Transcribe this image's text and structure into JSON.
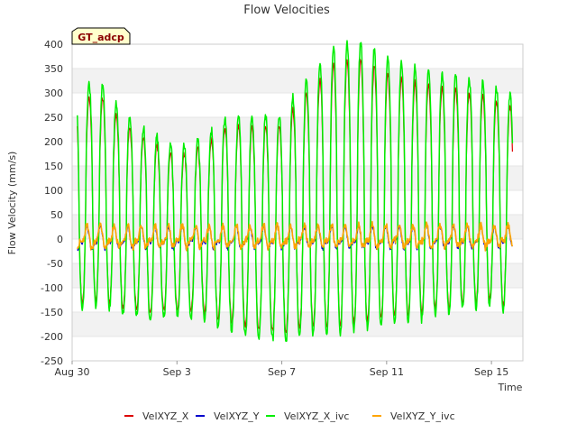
{
  "chart_data": {
    "type": "line",
    "title": "Flow Velocities",
    "xlabel": "Time",
    "ylabel": "Flow Velocity (mm/s)",
    "badge": "GT_adcp",
    "ylim": [
      -250,
      400
    ],
    "yticks": [
      -250,
      -200,
      -150,
      -100,
      -50,
      0,
      50,
      100,
      150,
      200,
      250,
      300,
      350,
      400
    ],
    "xlim_days": [
      0,
      17.2
    ],
    "xticks": [
      {
        "label": "Aug 30",
        "day": 0
      },
      {
        "label": "Sep 3",
        "day": 4
      },
      {
        "label": "Sep 7",
        "day": 8
      },
      {
        "label": "Sep 11",
        "day": 12
      },
      {
        "label": "Sep 15",
        "day": 16
      }
    ],
    "cycles_per_day": 1.93,
    "x_component_envelope": {
      "days": [
        0.2,
        1.0,
        2.0,
        3.0,
        4.0,
        5.0,
        6.0,
        7.0,
        8.0,
        9.0,
        10.0,
        11.0,
        12.0,
        13.0,
        14.0,
        15.0,
        16.0,
        16.8
      ],
      "peak": [
        300,
        315,
        250,
        210,
        180,
        200,
        250,
        240,
        250,
        320,
        380,
        390,
        360,
        340,
        330,
        320,
        300,
        285
      ],
      "trough": [
        -140,
        -130,
        -150,
        -160,
        -150,
        -160,
        -180,
        -200,
        -200,
        -190,
        -190,
        -180,
        -170,
        -165,
        -150,
        -140,
        -130,
        -150
      ]
    },
    "y_component_amplitude": 18,
    "series": [
      {
        "name": "VelXYZ_X",
        "color": "#dd0000"
      },
      {
        "name": "VelXYZ_Y",
        "color": "#0000cc"
      },
      {
        "name": "VelXYZ_X_ivc",
        "color": "#00ee00"
      },
      {
        "name": "VelXYZ_Y_ivc",
        "color": "#ffa500"
      }
    ]
  }
}
